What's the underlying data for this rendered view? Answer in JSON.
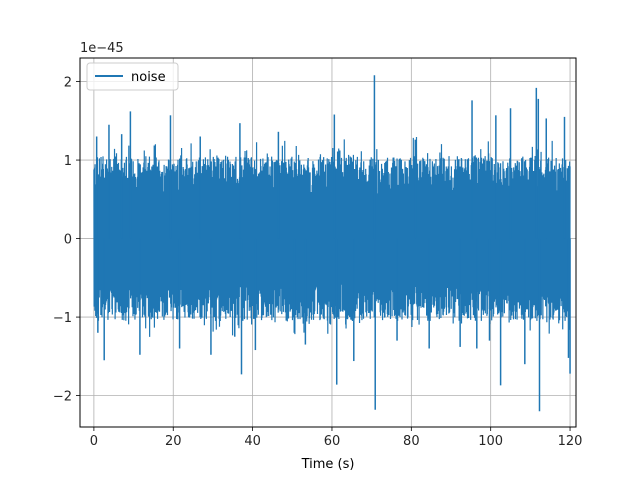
{
  "chart_data": {
    "type": "line",
    "title": "",
    "xlabel": "Time (s)",
    "ylabel": "",
    "y_offset_label": "1e−45",
    "xlim": [
      -3.5,
      121.5
    ],
    "ylim": [
      -2.4,
      2.3
    ],
    "x_ticks": [
      0,
      20,
      40,
      60,
      80,
      100,
      120
    ],
    "y_ticks": [
      -2,
      -1,
      0,
      1,
      2
    ],
    "x_tick_labels": [
      "0",
      "20",
      "40",
      "60",
      "80",
      "100",
      "120"
    ],
    "y_tick_labels": [
      "−2",
      "−1",
      "0",
      "1",
      "2"
    ],
    "grid": true,
    "legend_position": "top-left",
    "series": [
      {
        "name": "noise",
        "color": "#1f77b4",
        "x_range": [
          0,
          120
        ],
        "envelope_max": 1.0,
        "envelope_min": -1.0,
        "spikes": [
          {
            "x": 0.7,
            "y": 1.3
          },
          {
            "x": 1.0,
            "y": -1.2
          },
          {
            "x": 2.6,
            "y": -1.55
          },
          {
            "x": 3.8,
            "y": 1.45
          },
          {
            "x": 7.0,
            "y": 1.33
          },
          {
            "x": 9.2,
            "y": 1.62
          },
          {
            "x": 11.6,
            "y": -1.48
          },
          {
            "x": 19.3,
            "y": 1.57
          },
          {
            "x": 21.6,
            "y": -1.4
          },
          {
            "x": 26.8,
            "y": 1.3
          },
          {
            "x": 29.5,
            "y": -1.48
          },
          {
            "x": 35.5,
            "y": -1.25
          },
          {
            "x": 36.8,
            "y": 1.47
          },
          {
            "x": 37.2,
            "y": -1.73
          },
          {
            "x": 40.7,
            "y": -1.42
          },
          {
            "x": 46.5,
            "y": 1.36
          },
          {
            "x": 50.5,
            "y": -1.2
          },
          {
            "x": 53.3,
            "y": -1.35
          },
          {
            "x": 60.6,
            "y": 1.58
          },
          {
            "x": 61.2,
            "y": -1.86
          },
          {
            "x": 65.5,
            "y": -1.56
          },
          {
            "x": 70.7,
            "y": 2.08
          },
          {
            "x": 70.9,
            "y": -2.18
          },
          {
            "x": 76.4,
            "y": -1.3
          },
          {
            "x": 81.0,
            "y": 1.26
          },
          {
            "x": 84.5,
            "y": -1.4
          },
          {
            "x": 92.3,
            "y": -1.38
          },
          {
            "x": 95.3,
            "y": 1.76
          },
          {
            "x": 96.5,
            "y": -1.4
          },
          {
            "x": 99.7,
            "y": -1.3
          },
          {
            "x": 101.3,
            "y": 1.57
          },
          {
            "x": 102.5,
            "y": -1.87
          },
          {
            "x": 105.0,
            "y": 1.66
          },
          {
            "x": 108.6,
            "y": -1.6
          },
          {
            "x": 111.5,
            "y": 1.92
          },
          {
            "x": 112.0,
            "y": 1.78
          },
          {
            "x": 112.3,
            "y": -2.2
          },
          {
            "x": 114.0,
            "y": 1.53
          },
          {
            "x": 118.6,
            "y": 1.55
          },
          {
            "x": 119.6,
            "y": -1.52
          },
          {
            "x": 120.0,
            "y": -1.72
          }
        ]
      }
    ]
  }
}
